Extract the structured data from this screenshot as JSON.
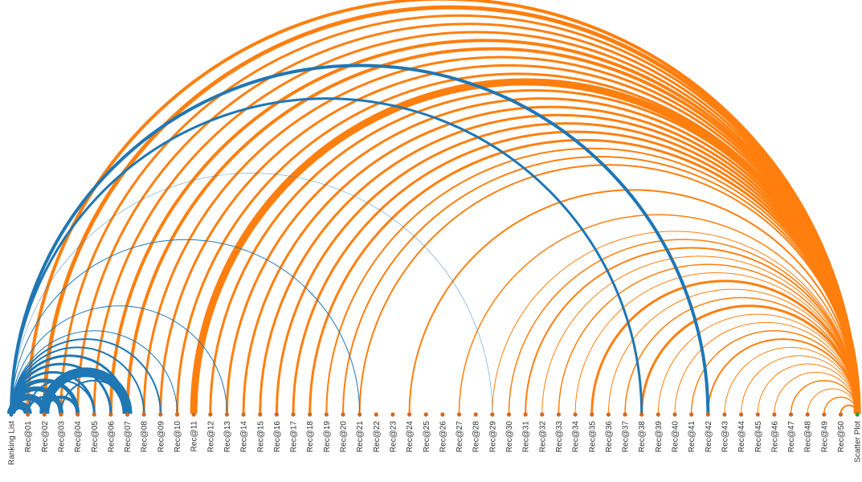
{
  "diagram": {
    "colors": {
      "from_ranking_list": "#1f77b4",
      "to_scatter_plot": "#ff7f0e",
      "node": "#d2691e",
      "background": "#ffffff"
    },
    "nodes": [
      "Ranking List",
      "Rec@01",
      "Rec@02",
      "Rec@03",
      "Rec@04",
      "Rec@05",
      "Rec@06",
      "Rec@07",
      "Rec@08",
      "Rec@09",
      "Rec@10",
      "Rec@11",
      "Rec@12",
      "Rec@13",
      "Rec@14",
      "Rec@15",
      "Rec@16",
      "Rec@17",
      "Rec@18",
      "Rec@19",
      "Rec@20",
      "Rec@21",
      "Rec@22",
      "Rec@23",
      "Rec@24",
      "Rec@25",
      "Rec@26",
      "Rec@27",
      "Rec@28",
      "Rec@29",
      "Rec@30",
      "Rec@31",
      "Rec@32",
      "Rec@33",
      "Rec@34",
      "Rec@35",
      "Rec@36",
      "Rec@37",
      "Rec@38",
      "Rec@39",
      "Rec@40",
      "Rec@41",
      "Rec@42",
      "Rec@43",
      "Rec@44",
      "Rec@45",
      "Rec@46",
      "Rec@47",
      "Rec@48",
      "Rec@49",
      "Rec@50",
      "Scatter Plot"
    ],
    "blue_links": [
      {
        "source": "Ranking List",
        "target": "Rec@01",
        "weight": 10
      },
      {
        "source": "Ranking List",
        "target": "Rec@02",
        "weight": 8
      },
      {
        "source": "Ranking List",
        "target": "Rec@03",
        "weight": 6
      },
      {
        "source": "Ranking List",
        "target": "Rec@04",
        "weight": 5
      },
      {
        "source": "Ranking List",
        "target": "Rec@05",
        "weight": 3
      },
      {
        "source": "Ranking List",
        "target": "Rec@06",
        "weight": 3
      },
      {
        "source": "Ranking List",
        "target": "Rec@07",
        "weight": 3
      },
      {
        "source": "Ranking List",
        "target": "Rec@08",
        "weight": 2
      },
      {
        "source": "Ranking List",
        "target": "Rec@09",
        "weight": 2
      },
      {
        "source": "Ranking List",
        "target": "Rec@10",
        "weight": 1
      },
      {
        "source": "Ranking List",
        "target": "Rec@13",
        "weight": 1
      },
      {
        "source": "Ranking List",
        "target": "Rec@21",
        "weight": 1
      },
      {
        "source": "Ranking List",
        "target": "Rec@29",
        "weight": 0.6
      },
      {
        "source": "Ranking List",
        "target": "Rec@38",
        "weight": 3
      },
      {
        "source": "Ranking List",
        "target": "Rec@42",
        "weight": 4
      },
      {
        "source": "Rec@02",
        "target": "Rec@07",
        "weight": 12
      },
      {
        "source": "Rec@02",
        "target": "Rec@04",
        "weight": 4
      },
      {
        "source": "Rec@01",
        "target": "Rec@03",
        "weight": 3
      },
      {
        "source": "Rec@01",
        "target": "Rec@05",
        "weight": 2
      },
      {
        "source": "Rec@03",
        "target": "Rec@07",
        "weight": 2
      }
    ],
    "orange_links": [
      {
        "source": "Rec@01",
        "target": "Scatter Plot",
        "weight": 4
      },
      {
        "source": "Rec@02",
        "target": "Scatter Plot",
        "weight": 5
      },
      {
        "source": "Rec@03",
        "target": "Scatter Plot",
        "weight": 3
      },
      {
        "source": "Rec@04",
        "target": "Scatter Plot",
        "weight": 3
      },
      {
        "source": "Rec@05",
        "target": "Scatter Plot",
        "weight": 3
      },
      {
        "source": "Rec@06",
        "target": "Scatter Plot",
        "weight": 4
      },
      {
        "source": "Rec@07",
        "target": "Scatter Plot",
        "weight": 4
      },
      {
        "source": "Rec@08",
        "target": "Scatter Plot",
        "weight": 3
      },
      {
        "source": "Rec@09",
        "target": "Scatter Plot",
        "weight": 3
      },
      {
        "source": "Rec@10",
        "target": "Scatter Plot",
        "weight": 3
      },
      {
        "source": "Rec@11",
        "target": "Scatter Plot",
        "weight": 9
      },
      {
        "source": "Rec@12",
        "target": "Scatter Plot",
        "weight": 3
      },
      {
        "source": "Rec@13",
        "target": "Scatter Plot",
        "weight": 3
      },
      {
        "source": "Rec@14",
        "target": "Scatter Plot",
        "weight": 3
      },
      {
        "source": "Rec@15",
        "target": "Scatter Plot",
        "weight": 3
      },
      {
        "source": "Rec@16",
        "target": "Scatter Plot",
        "weight": 3
      },
      {
        "source": "Rec@17",
        "target": "Scatter Plot",
        "weight": 3
      },
      {
        "source": "Rec@18",
        "target": "Scatter Plot",
        "weight": 3
      },
      {
        "source": "Rec@19",
        "target": "Scatter Plot",
        "weight": 2
      },
      {
        "source": "Rec@20",
        "target": "Scatter Plot",
        "weight": 2
      },
      {
        "source": "Rec@21",
        "target": "Scatter Plot",
        "weight": 2
      },
      {
        "source": "Rec@24",
        "target": "Scatter Plot",
        "weight": 2
      },
      {
        "source": "Rec@27",
        "target": "Scatter Plot",
        "weight": 1.5
      },
      {
        "source": "Rec@29",
        "target": "Scatter Plot",
        "weight": 1
      },
      {
        "source": "Rec@30",
        "target": "Scatter Plot",
        "weight": 1.5
      },
      {
        "source": "Rec@31",
        "target": "Scatter Plot",
        "weight": 2
      },
      {
        "source": "Rec@32",
        "target": "Scatter Plot",
        "weight": 1
      },
      {
        "source": "Rec@33",
        "target": "Scatter Plot",
        "weight": 1.5
      },
      {
        "source": "Rec@34",
        "target": "Scatter Plot",
        "weight": 1
      },
      {
        "source": "Rec@35",
        "target": "Scatter Plot",
        "weight": 3
      },
      {
        "source": "Rec@36",
        "target": "Scatter Plot",
        "weight": 1
      },
      {
        "source": "Rec@37",
        "target": "Scatter Plot",
        "weight": 1.5
      },
      {
        "source": "Rec@38",
        "target": "Scatter Plot",
        "weight": 3
      },
      {
        "source": "Rec@39",
        "target": "Scatter Plot",
        "weight": 1
      },
      {
        "source": "Rec@40",
        "target": "Scatter Plot",
        "weight": 1
      },
      {
        "source": "Rec@41",
        "target": "Scatter Plot",
        "weight": 1.5
      },
      {
        "source": "Rec@42",
        "target": "Scatter Plot",
        "weight": 2
      },
      {
        "source": "Rec@43",
        "target": "Scatter Plot",
        "weight": 1
      },
      {
        "source": "Rec@44",
        "target": "Scatter Plot",
        "weight": 1
      },
      {
        "source": "Rec@45",
        "target": "Scatter Plot",
        "weight": 1
      },
      {
        "source": "Rec@46",
        "target": "Scatter Plot",
        "weight": 1
      },
      {
        "source": "Rec@47",
        "target": "Scatter Plot",
        "weight": 1.5
      },
      {
        "source": "Rec@48",
        "target": "Scatter Plot",
        "weight": 1
      },
      {
        "source": "Rec@49",
        "target": "Scatter Plot",
        "weight": 1.5
      },
      {
        "source": "Rec@50",
        "target": "Scatter Plot",
        "weight": 2
      }
    ]
  }
}
